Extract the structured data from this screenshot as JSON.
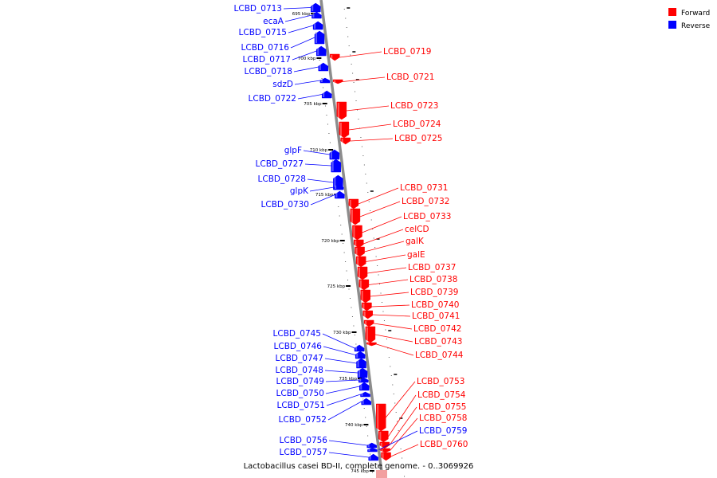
{
  "caption": "Lactobacillus casei BD-II, complete genome. - 0..3069926",
  "legend": {
    "forward_label": "Forward",
    "reverse_label": "Reverse",
    "forward_color": "#ff0000",
    "reverse_color": "#0000ff"
  },
  "colors": {
    "forward": "#ff0000",
    "reverse": "#0000ff",
    "backbone": "#8c8c8c",
    "tick": "#000000"
  },
  "scale_ticks": [
    {
      "label": "695 kbp"
    },
    {
      "label": "700 kbp"
    },
    {
      "label": "705 kbp"
    },
    {
      "label": "710 kbp"
    },
    {
      "label": "715 kbp"
    },
    {
      "label": "720 kbp"
    },
    {
      "label": "725 kbp"
    },
    {
      "label": "730 kbp"
    },
    {
      "label": "735 kbp"
    },
    {
      "label": "740 kbp"
    },
    {
      "label": "745 kbp"
    }
  ],
  "reverse_genes": [
    {
      "name": "LCBD_0713"
    },
    {
      "name": "ecaA"
    },
    {
      "name": "LCBD_0715"
    },
    {
      "name": "LCBD_0716"
    },
    {
      "name": "LCBD_0717"
    },
    {
      "name": "LCBD_0718"
    },
    {
      "name": "sdzD"
    },
    {
      "name": "LCBD_0722"
    },
    {
      "name": "glpF"
    },
    {
      "name": "LCBD_0727"
    },
    {
      "name": "LCBD_0728"
    },
    {
      "name": "glpK"
    },
    {
      "name": "LCBD_0730"
    },
    {
      "name": "LCBD_0745"
    },
    {
      "name": "LCBD_0746"
    },
    {
      "name": "LCBD_0747"
    },
    {
      "name": "LCBD_0748"
    },
    {
      "name": "LCBD_0749"
    },
    {
      "name": "LCBD_0750"
    },
    {
      "name": "LCBD_0751"
    },
    {
      "name": "LCBD_0752"
    },
    {
      "name": "LCBD_0756"
    },
    {
      "name": "LCBD_0757"
    }
  ],
  "forward_genes": [
    {
      "name": "LCBD_0719"
    },
    {
      "name": "LCBD_0721"
    },
    {
      "name": "LCBD_0723"
    },
    {
      "name": "LCBD_0724"
    },
    {
      "name": "LCBD_0725"
    },
    {
      "name": "LCBD_0731"
    },
    {
      "name": "LCBD_0732"
    },
    {
      "name": "LCBD_0733"
    },
    {
      "name": "celCD"
    },
    {
      "name": "galK"
    },
    {
      "name": "galE"
    },
    {
      "name": "LCBD_0737"
    },
    {
      "name": "LCBD_0738"
    },
    {
      "name": "LCBD_0739"
    },
    {
      "name": "LCBD_0740"
    },
    {
      "name": "LCBD_0741"
    },
    {
      "name": "LCBD_0742"
    },
    {
      "name": "LCBD_0743"
    },
    {
      "name": "LCBD_0744"
    },
    {
      "name": "LCBD_0753"
    },
    {
      "name": "LCBD_0754"
    },
    {
      "name": "LCBD_0755"
    },
    {
      "name": "LCBD_0758"
    },
    {
      "name": "LCBD_0760"
    }
  ],
  "right_reverse_genes": [
    {
      "name": "LCBD_0759"
    }
  ]
}
